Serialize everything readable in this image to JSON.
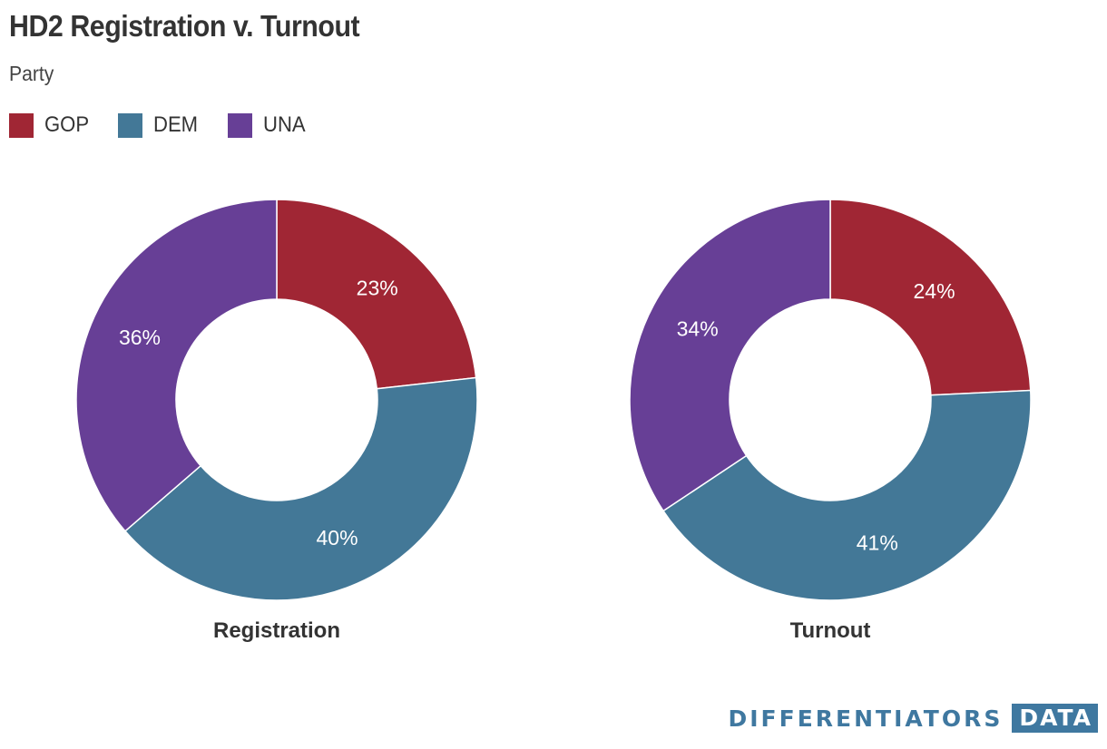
{
  "title": "HD2 Registration v. Turnout",
  "subtitle": "Party",
  "legend": [
    {
      "label": "GOP",
      "color": "#a02634"
    },
    {
      "label": "DEM",
      "color": "#437897"
    },
    {
      "label": "UNA",
      "color": "#673f96"
    }
  ],
  "brand": {
    "name": "DIFFERENTIATORS",
    "badge": "DATA"
  },
  "chart_data": [
    {
      "type": "pie",
      "title": "Registration",
      "categories": [
        "GOP",
        "DEM",
        "UNA"
      ],
      "values": [
        23,
        40,
        36
      ],
      "labels": [
        "23%",
        "40%",
        "36%"
      ],
      "colors": [
        "#a02634",
        "#437897",
        "#673f96"
      ]
    },
    {
      "type": "pie",
      "title": "Turnout",
      "categories": [
        "GOP",
        "DEM",
        "UNA"
      ],
      "values": [
        24,
        41,
        34
      ],
      "labels": [
        "24%",
        "41%",
        "34%"
      ],
      "colors": [
        "#a02634",
        "#437897",
        "#673f96"
      ]
    }
  ]
}
